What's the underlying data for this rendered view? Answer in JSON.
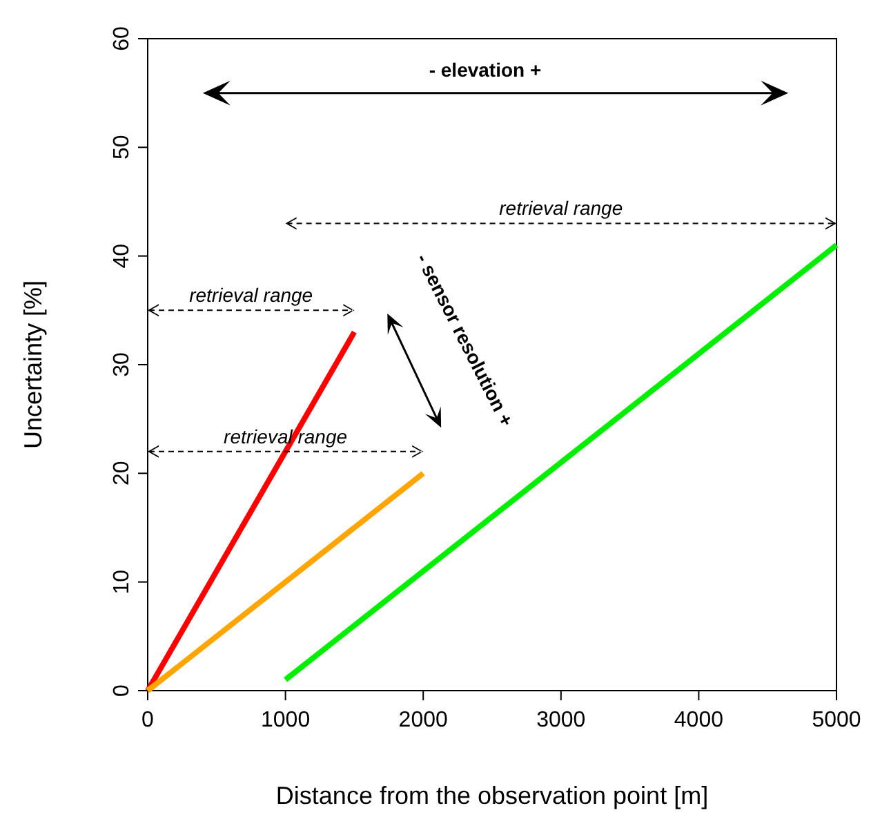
{
  "chart_data": {
    "type": "line",
    "xlabel": "Distance from the observation point [m]",
    "ylabel": "Uncertainty [%]",
    "xlim": [
      0,
      5000
    ],
    "ylim": [
      0,
      60
    ],
    "xticks": [
      0,
      1000,
      2000,
      3000,
      4000,
      5000
    ],
    "yticks": [
      0,
      10,
      20,
      30,
      40,
      50,
      60
    ],
    "series": [
      {
        "color": "#ff0000",
        "x": [
          0,
          1500
        ],
        "values": [
          0,
          33
        ]
      },
      {
        "color": "#ffa500",
        "x": [
          0,
          2000
        ],
        "values": [
          0,
          20
        ]
      },
      {
        "color": "#00ee00",
        "x": [
          1000,
          5000
        ],
        "values": [
          1,
          41
        ]
      }
    ],
    "annotations": [
      "- elevation +",
      "retrieval range",
      "retrieval range",
      "retrieval range",
      "- sensor resolution +"
    ],
    "grid": false,
    "marker": "none",
    "line_style": "solid"
  }
}
